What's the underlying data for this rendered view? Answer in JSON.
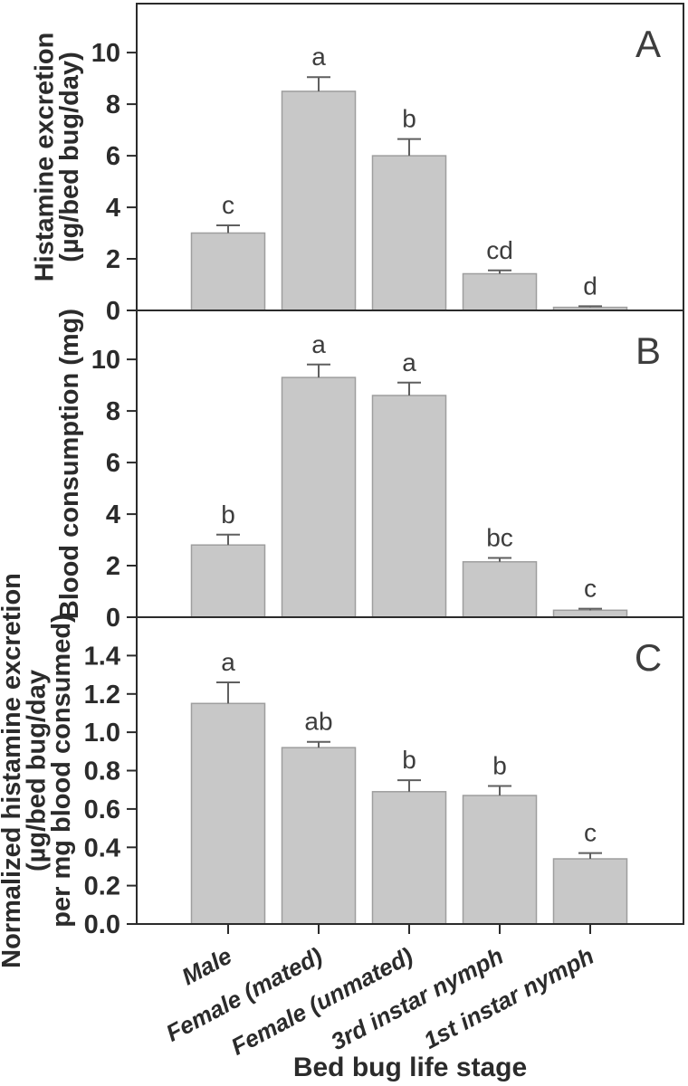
{
  "chart_data": {
    "type": "bar",
    "title": "",
    "xlabel": "Bed bug life stage",
    "grid": false,
    "legend": null,
    "categories": [
      "Male",
      "Female (mated)",
      "Female (unmated)",
      "3rd instar nymph",
      "1st instar nymph"
    ],
    "panels": [
      {
        "label": "A",
        "ylabel_lines": [
          "Histamine excretion",
          "(µg/bed bug/day)"
        ],
        "ylim": [
          0,
          11.9
        ],
        "yticks": [
          0,
          2,
          4,
          6,
          8,
          10
        ],
        "ytick_decimals": 0,
        "values": [
          3.0,
          8.5,
          6.0,
          1.42,
          0.12
        ],
        "error_tops": [
          3.3,
          9.05,
          6.65,
          1.55,
          0.16
        ],
        "sig_letters": [
          "c",
          "a",
          "b",
          "cd",
          "d"
        ]
      },
      {
        "label": "B",
        "ylabel_lines": [
          "Blood consumption (mg)"
        ],
        "ylim": [
          0,
          11.9
        ],
        "yticks": [
          0,
          2,
          4,
          6,
          8,
          10
        ],
        "ytick_decimals": 0,
        "values": [
          2.8,
          9.3,
          8.6,
          2.15,
          0.27
        ],
        "error_tops": [
          3.2,
          9.8,
          9.1,
          2.3,
          0.33
        ],
        "sig_letters": [
          "b",
          "a",
          "a",
          "bc",
          "c"
        ]
      },
      {
        "label": "C",
        "ylabel_lines": [
          "Normalized histamine excretion",
          "(µg/bed bug/day",
          "per mg blood consumed)"
        ],
        "ylim": [
          0,
          1.6
        ],
        "yticks": [
          0,
          0.2,
          0.4,
          0.6,
          0.8,
          1.0,
          1.2,
          1.4
        ],
        "ytick_decimals": 1,
        "values": [
          1.15,
          0.92,
          0.69,
          0.67,
          0.34
        ],
        "error_tops": [
          1.26,
          0.95,
          0.75,
          0.72,
          0.37
        ],
        "sig_letters": [
          "a",
          "ab",
          "b",
          "b",
          "c"
        ]
      }
    ],
    "colors": {
      "bar_fill": "#c8c8c8",
      "bar_stroke": "#9e9e9e",
      "error_bar": "#5f5f5f",
      "axis": "#2b2b2b",
      "text": "#2b2b2b",
      "annotation": "#3d3d3d",
      "background": "#ffffff"
    }
  }
}
